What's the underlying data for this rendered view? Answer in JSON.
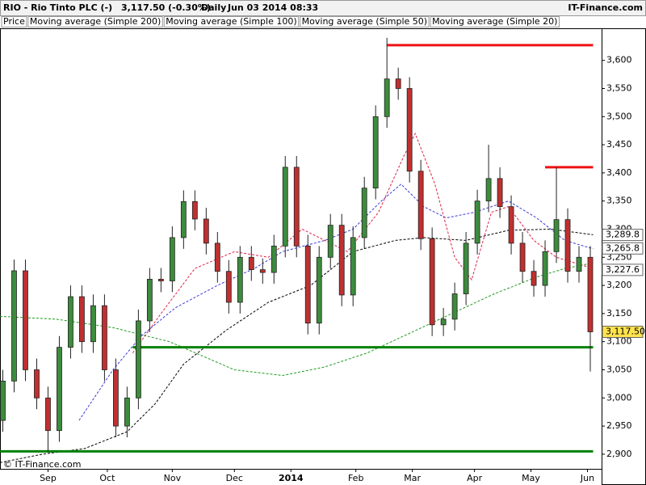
{
  "chart_data": {
    "type": "candlestick",
    "symbol": "RIO - Rio Tinto PLC (-)",
    "quote": "3,117.50 (-0.30%)",
    "interval": "Daily",
    "timestamp": "Jun 03 2014 08:33",
    "brand": "IT-Finance.com",
    "copyright": "© IT-Finance.com",
    "xlim": [
      0,
      213
    ],
    "ylim": [
      2874,
      3657
    ],
    "xticks": [
      {
        "value": 17,
        "label": "Sep"
      },
      {
        "value": 38,
        "label": "Oct"
      },
      {
        "value": 61,
        "label": "Nov"
      },
      {
        "value": 83,
        "label": "Dec"
      },
      {
        "value": 103,
        "label": "2014"
      },
      {
        "value": 126,
        "label": "Feb"
      },
      {
        "value": 146,
        "label": "Mar"
      },
      {
        "value": 168,
        "label": "Apr"
      },
      {
        "value": 188,
        "label": "May"
      },
      {
        "value": 208,
        "label": "Jun"
      }
    ],
    "yticks": [
      {
        "value": 2900,
        "label": "2,900"
      },
      {
        "value": 2950,
        "label": "2,950"
      },
      {
        "value": 3000,
        "label": "3,000"
      },
      {
        "value": 3050,
        "label": "3,050"
      },
      {
        "value": 3100,
        "label": "3,100"
      },
      {
        "value": 3150,
        "label": "3,150"
      },
      {
        "value": 3200,
        "label": "3,200"
      },
      {
        "value": 3250,
        "label": "3,250"
      },
      {
        "value": 3300,
        "label": "3,300"
      },
      {
        "value": 3350,
        "label": "3,350"
      },
      {
        "value": 3400,
        "label": "3,400"
      },
      {
        "value": 3450,
        "label": "3,450"
      },
      {
        "value": 3500,
        "label": "3,500"
      },
      {
        "value": 3550,
        "label": "3,550"
      },
      {
        "value": 3600,
        "label": "3,600"
      }
    ],
    "candles": {
      "name": "Price",
      "up_color": "#3c8c3c",
      "down_color": "#c03030",
      "x": [
        1,
        5,
        9,
        13,
        17,
        21,
        25,
        29,
        33,
        37,
        41,
        45,
        49,
        53,
        57,
        61,
        65,
        69,
        73,
        77,
        81,
        85,
        89,
        93,
        97,
        101,
        105,
        109,
        113,
        117,
        121,
        125,
        129,
        133,
        137,
        141,
        145,
        149,
        153,
        157,
        161,
        165,
        169,
        173,
        177,
        181,
        185,
        189,
        193,
        197,
        201,
        205,
        209
      ],
      "open": [
        2960,
        3030,
        3226,
        3050,
        3000,
        2942,
        3090,
        3180,
        3100,
        3164,
        3050,
        2950,
        3000,
        3137,
        3211,
        3208,
        3285,
        3349,
        3318,
        3275,
        3225,
        3170,
        3250,
        3228,
        3223,
        3270,
        3410,
        3270,
        3133,
        3250,
        3307,
        3183,
        3285,
        3373,
        3500,
        3567,
        3550,
        3403,
        3283,
        3130,
        3140,
        3185,
        3275,
        3350,
        3390,
        3340,
        3275,
        3225,
        3200,
        3260,
        3317,
        3225,
        3250
      ],
      "high": [
        3050,
        3246,
        3246,
        3070,
        3020,
        3110,
        3200,
        3200,
        3184,
        3184,
        3070,
        3020,
        3157,
        3231,
        3231,
        3305,
        3369,
        3369,
        3338,
        3295,
        3245,
        3270,
        3270,
        3248,
        3290,
        3430,
        3430,
        3290,
        3270,
        3327,
        3327,
        3305,
        3393,
        3520,
        3640,
        3587,
        3570,
        3423,
        3303,
        3160,
        3205,
        3295,
        3370,
        3450,
        3410,
        3360,
        3295,
        3245,
        3280,
        3410,
        3337,
        3270,
        3270
      ],
      "low": [
        2940,
        3010,
        3030,
        2980,
        2905,
        2922,
        3070,
        3080,
        3080,
        3030,
        2930,
        2930,
        2980,
        3117,
        3188,
        3188,
        3265,
        3298,
        3255,
        3205,
        3150,
        3150,
        3208,
        3203,
        3203,
        3250,
        3250,
        3113,
        3113,
        3230,
        3163,
        3163,
        3265,
        3353,
        3480,
        3530,
        3383,
        3263,
        3110,
        3110,
        3120,
        3165,
        3255,
        3330,
        3320,
        3255,
        3205,
        3180,
        3180,
        3240,
        3205,
        3205,
        3047
      ],
      "close": [
        3030,
        3226,
        3050,
        3000,
        2942,
        3090,
        3180,
        3100,
        3164,
        3050,
        2950,
        3000,
        3137,
        3211,
        3208,
        3285,
        3349,
        3318,
        3275,
        3225,
        3170,
        3250,
        3228,
        3223,
        3270,
        3410,
        3270,
        3133,
        3250,
        3307,
        3183,
        3285,
        3373,
        3500,
        3567,
        3550,
        3403,
        3283,
        3130,
        3140,
        3185,
        3275,
        3350,
        3390,
        3340,
        3275,
        3225,
        3200,
        3260,
        3317,
        3225,
        3250,
        3117.5
      ],
      "last_label": {
        "value": 3117.5,
        "label": "3,117.50"
      }
    },
    "series": [
      {
        "name": "Moving average (Simple 200)",
        "color": "#1f9a1f",
        "x": [
          0,
          20,
          40,
          60,
          83,
          100,
          115,
          130,
          145,
          160,
          175,
          190,
          200,
          210
        ],
        "values": [
          3145,
          3140,
          3125,
          3100,
          3050,
          3040,
          3055,
          3080,
          3115,
          3150,
          3185,
          3215,
          3230,
          3240
        ]
      },
      {
        "name": "Moving average (Simple 100)",
        "color": "#000000",
        "x": [
          0,
          15,
          30,
          45,
          55,
          65,
          80,
          95,
          110,
          125,
          140,
          150,
          165,
          180,
          195,
          210
        ],
        "values": [
          2885,
          2900,
          2910,
          2940,
          2990,
          3060,
          3120,
          3170,
          3200,
          3260,
          3280,
          3285,
          3280,
          3298,
          3300,
          3290
        ],
        "last_label": {
          "value": 3289.8,
          "label": "3,289.8"
        }
      },
      {
        "name": "Moving average (Simple 50)",
        "color": "#3a3ad8",
        "x": [
          28,
          40,
          50,
          62,
          77,
          90,
          100,
          115,
          125,
          135,
          142,
          150,
          158,
          168,
          180,
          190,
          200,
          210
        ],
        "values": [
          2960,
          3050,
          3110,
          3160,
          3200,
          3230,
          3260,
          3280,
          3300,
          3350,
          3380,
          3340,
          3320,
          3330,
          3350,
          3320,
          3280,
          3265
        ],
        "last_label": {
          "value": 3265.8,
          "label": "3,265.8"
        }
      },
      {
        "name": "Moving average (Simple 20)",
        "color": "#dd2244",
        "x": [
          47,
          57,
          69,
          83,
          95,
          107,
          115,
          123,
          134,
          143,
          147,
          154,
          161,
          167,
          174,
          180,
          189,
          197,
          210
        ],
        "values": [
          3080,
          3150,
          3230,
          3260,
          3250,
          3300,
          3280,
          3260,
          3330,
          3430,
          3470,
          3380,
          3250,
          3210,
          3330,
          3340,
          3280,
          3250,
          3230
        ],
        "last_label": {
          "value": 3227.6,
          "label": "3,227.6"
        }
      }
    ],
    "levels": [
      {
        "value": 3627,
        "from": 137,
        "to": 210,
        "color": "#ee1111"
      },
      {
        "value": 3410,
        "from": 193,
        "to": 210,
        "color": "#ee1111"
      },
      {
        "value": 3090,
        "from": 47,
        "to": 210,
        "color": "#008000"
      },
      {
        "value": 2905,
        "from": 0,
        "to": 210,
        "color": "#008000"
      }
    ]
  }
}
